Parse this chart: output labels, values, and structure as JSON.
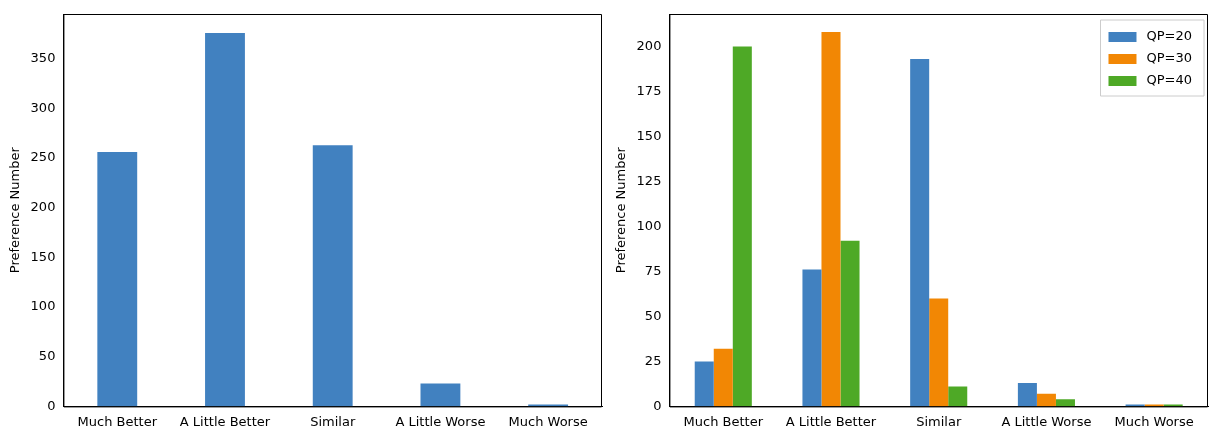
{
  "chart_data": [
    {
      "type": "bar",
      "ylabel": "Preference Number",
      "categories": [
        "Much Better",
        "A Little Better",
        "Similar",
        "A Little Worse",
        "Much Worse"
      ],
      "values": [
        256,
        376,
        263,
        23,
        2
      ],
      "color": "#4181c0",
      "ylim": [
        0,
        395
      ],
      "yticks": [
        0,
        50,
        100,
        150,
        200,
        250,
        300,
        350
      ],
      "grid": false,
      "legend": false
    },
    {
      "type": "bar",
      "ylabel": "Preference Number",
      "categories": [
        "Much Better",
        "A Little Better",
        "Similar",
        "A Little Worse",
        "Much Worse"
      ],
      "series": [
        {
          "name": "QP=20",
          "color": "#4181c0",
          "values": [
            25,
            76,
            193,
            13,
            1
          ]
        },
        {
          "name": "QP=30",
          "color": "#f28704",
          "values": [
            32,
            208,
            60,
            7,
            1
          ]
        },
        {
          "name": "QP=40",
          "color": "#4ea926",
          "values": [
            200,
            92,
            11,
            4,
            1
          ]
        }
      ],
      "ylim": [
        0,
        218
      ],
      "yticks": [
        0,
        25,
        50,
        75,
        100,
        125,
        150,
        175,
        200
      ],
      "grid": false,
      "legend": "top right"
    }
  ]
}
